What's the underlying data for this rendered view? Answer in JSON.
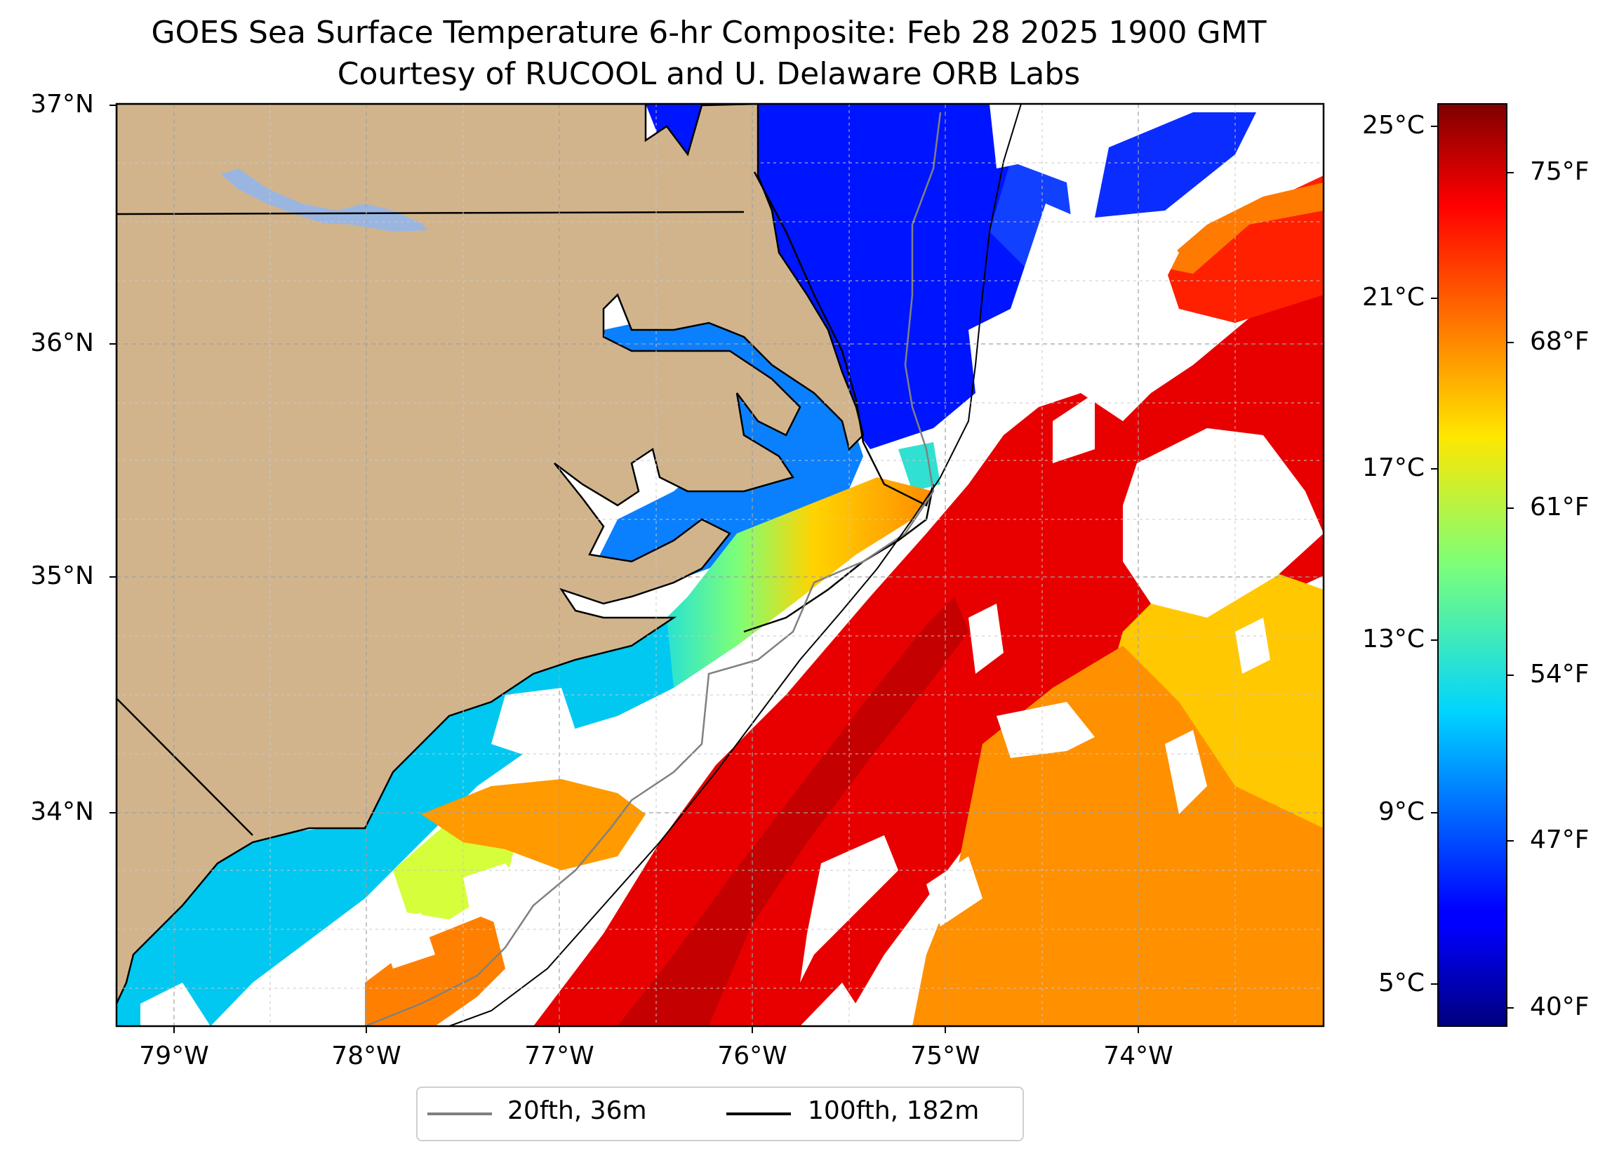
{
  "title": {
    "line1": "GOES Sea Surface Temperature 6-hr Composite: Feb 28 2025 1900 GMT",
    "line2": "Courtesy of RUCOOL and U. Delaware ORB Labs"
  },
  "map": {
    "lon_range": [
      -79.3,
      -73.1
    ],
    "lat_range": [
      33.1,
      37.0
    ],
    "lat_labels": [
      "37°N",
      "36°N",
      "35°N",
      "34°N"
    ],
    "lon_labels": [
      "79°W",
      "78°W",
      "77°W",
      "76°W",
      "75°W",
      "74°W"
    ],
    "gridlines": "dashed",
    "colors": {
      "land": "#d2b48c",
      "no_data": "#ffffff",
      "coastline": "#000000",
      "isobath_20fth": "#808080",
      "isobath_100fth": "#000000",
      "lake": "#9ab6e0"
    }
  },
  "colorbar": {
    "colormap": "jet",
    "celsius_labels": [
      "25°C",
      "21°C",
      "17°C",
      "13°C",
      "9°C",
      "5°C"
    ],
    "fahrenheit_labels": [
      "75°F",
      "68°F",
      "61°F",
      "54°F",
      "47°F",
      "40°F"
    ]
  },
  "legend": {
    "entries": [
      {
        "label": "20fth, 36m",
        "color": "#808080"
      },
      {
        "label": "100fth, 182m",
        "color": "#000000"
      }
    ],
    "placement": "bottom-center"
  }
}
